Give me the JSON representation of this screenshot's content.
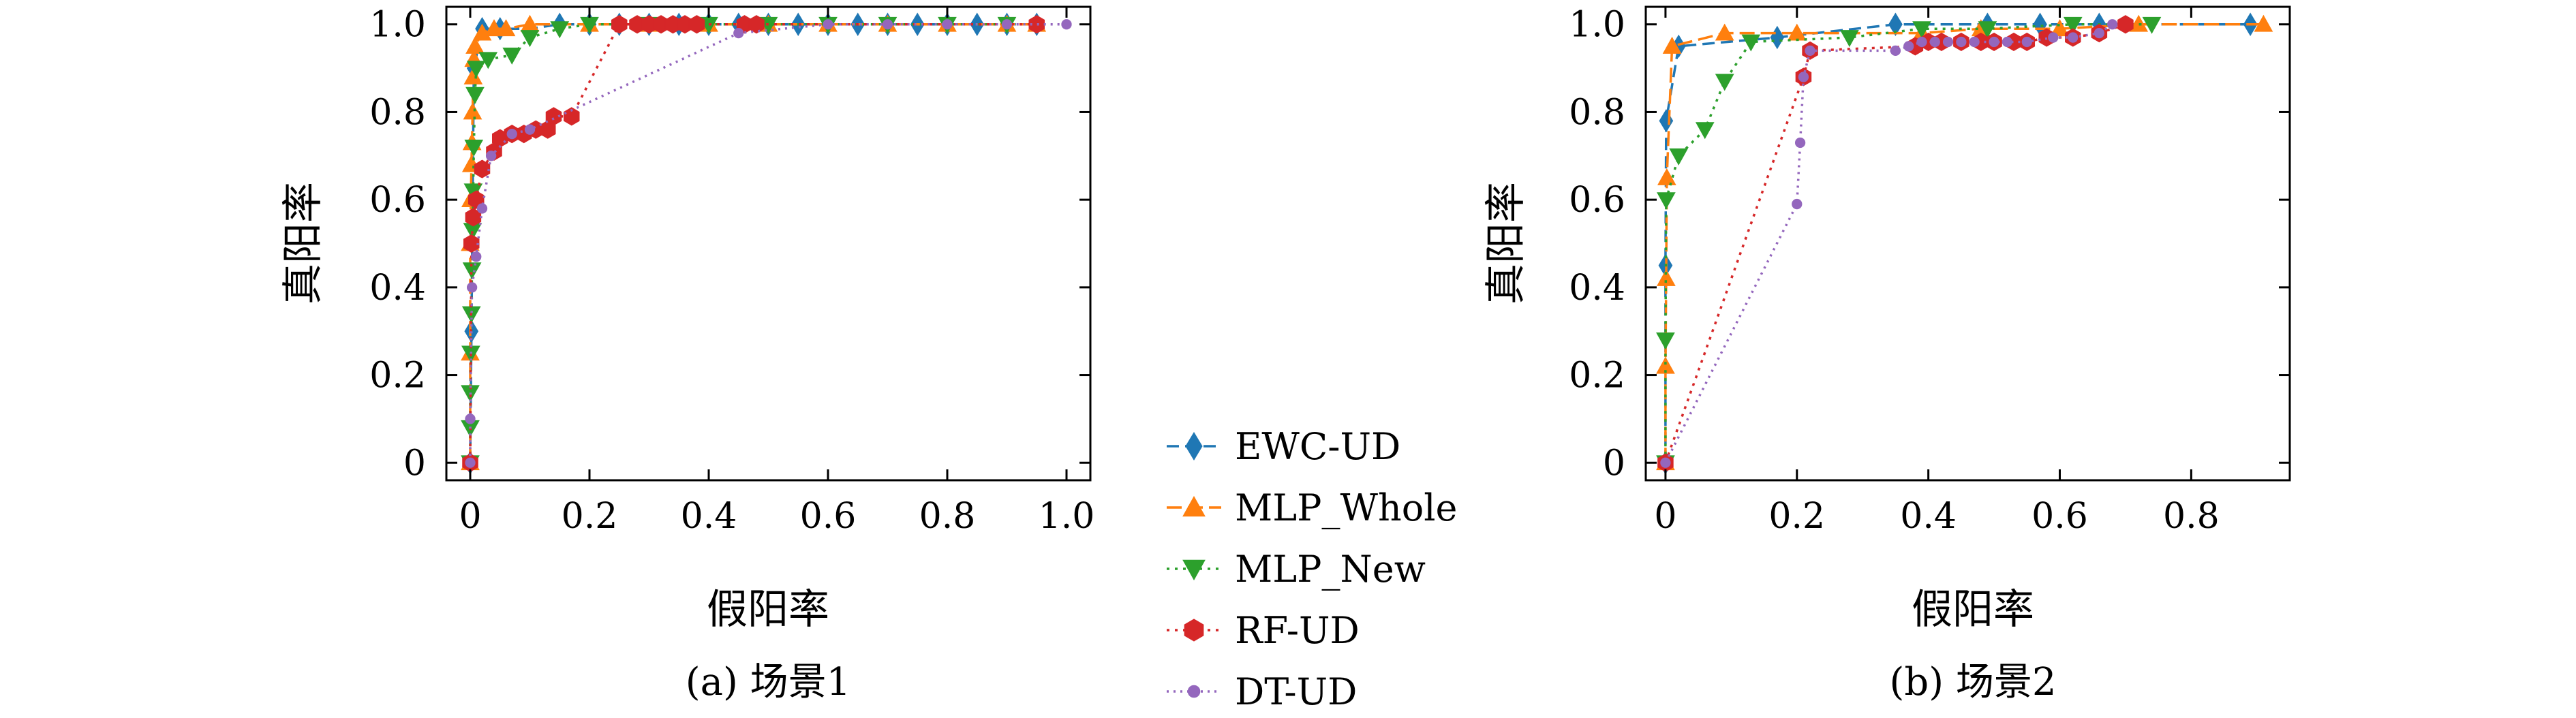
{
  "chart_data": [
    {
      "type": "line",
      "caption": "(a) 场景1",
      "xlabel": "假阳率",
      "ylabel": "真阳率",
      "xlim": [
        -0.04,
        1.04
      ],
      "ylim": [
        -0.04,
        1.04
      ],
      "xticks": [
        {
          "value": 0,
          "label": "0"
        },
        {
          "value": 0.2,
          "label": "0.2"
        },
        {
          "value": 0.4,
          "label": "0.4"
        },
        {
          "value": 0.6,
          "label": "0.6"
        },
        {
          "value": 0.8,
          "label": "0.8"
        },
        {
          "value": 1.0,
          "label": "1.0"
        }
      ],
      "yticks": [
        {
          "value": 0,
          "label": "0"
        },
        {
          "value": 0.2,
          "label": "0.2"
        },
        {
          "value": 0.4,
          "label": "0.4"
        },
        {
          "value": 0.6,
          "label": "0.6"
        },
        {
          "value": 0.8,
          "label": "0.8"
        },
        {
          "value": 1.0,
          "label": "1.0"
        }
      ],
      "grid": false,
      "series": [
        {
          "name": "EWC-UD",
          "color": "#1f77b4",
          "marker": "diamond",
          "dash": "18,9",
          "points": [
            [
              0,
              0
            ],
            [
              0.002,
              0.3
            ],
            [
              0.004,
              0.6
            ],
            [
              0.006,
              0.9
            ],
            [
              0.02,
              0.99
            ],
            [
              0.05,
              0.99
            ],
            [
              0.1,
              0.99
            ],
            [
              0.15,
              1.0
            ],
            [
              0.2,
              1.0
            ],
            [
              0.25,
              1.0
            ],
            [
              0.3,
              1.0
            ],
            [
              0.35,
              1.0
            ],
            [
              0.4,
              1.0
            ],
            [
              0.45,
              1.0
            ],
            [
              0.5,
              1.0
            ],
            [
              0.55,
              1.0
            ],
            [
              0.6,
              1.0
            ],
            [
              0.65,
              1.0
            ],
            [
              0.7,
              1.0
            ],
            [
              0.75,
              1.0
            ],
            [
              0.8,
              1.0
            ],
            [
              0.85,
              1.0
            ],
            [
              0.9,
              1.0
            ],
            [
              0.95,
              1.0
            ]
          ]
        },
        {
          "name": "MLP_Whole",
          "color": "#ff7f0e",
          "marker": "triangle-up",
          "dash": "22,9",
          "points": [
            [
              0,
              0
            ],
            [
              0,
              0.25
            ],
            [
              0,
              0.5
            ],
            [
              0.001,
              0.6
            ],
            [
              0.002,
              0.68
            ],
            [
              0.003,
              0.73
            ],
            [
              0.004,
              0.8
            ],
            [
              0.005,
              0.88
            ],
            [
              0.006,
              0.92
            ],
            [
              0.008,
              0.95
            ],
            [
              0.02,
              0.98
            ],
            [
              0.04,
              0.99
            ],
            [
              0.06,
              0.99
            ],
            [
              0.1,
              1.0
            ],
            [
              0.2,
              1.0
            ],
            [
              0.3,
              1.0
            ],
            [
              0.4,
              1.0
            ],
            [
              0.5,
              1.0
            ],
            [
              0.6,
              1.0
            ],
            [
              0.7,
              1.0
            ],
            [
              0.8,
              1.0
            ],
            [
              0.9,
              1.0
            ],
            [
              0.95,
              1.0
            ]
          ]
        },
        {
          "name": "MLP_New",
          "color": "#2ca02c",
          "marker": "triangle-down",
          "dash": "4,8",
          "points": [
            [
              0,
              0
            ],
            [
              0,
              0.08
            ],
            [
              0,
              0.16
            ],
            [
              0.001,
              0.25
            ],
            [
              0.002,
              0.34
            ],
            [
              0.003,
              0.44
            ],
            [
              0.004,
              0.53
            ],
            [
              0.005,
              0.62
            ],
            [
              0.006,
              0.72
            ],
            [
              0.008,
              0.84
            ],
            [
              0.01,
              0.9
            ],
            [
              0.03,
              0.92
            ],
            [
              0.07,
              0.93
            ],
            [
              0.1,
              0.97
            ],
            [
              0.15,
              0.99
            ],
            [
              0.2,
              1.0
            ],
            [
              0.3,
              1.0
            ],
            [
              0.4,
              1.0
            ],
            [
              0.5,
              1.0
            ],
            [
              0.6,
              1.0
            ],
            [
              0.7,
              1.0
            ],
            [
              0.8,
              1.0
            ],
            [
              0.9,
              1.0
            ]
          ]
        },
        {
          "name": "RF-UD",
          "color": "#d62728",
          "marker": "hexagon",
          "dash": "4,8",
          "points": [
            [
              0,
              0
            ],
            [
              0.002,
              0.5
            ],
            [
              0.005,
              0.56
            ],
            [
              0.01,
              0.6
            ],
            [
              0.02,
              0.67
            ],
            [
              0.04,
              0.71
            ],
            [
              0.05,
              0.74
            ],
            [
              0.07,
              0.75
            ],
            [
              0.09,
              0.75
            ],
            [
              0.11,
              0.76
            ],
            [
              0.13,
              0.76
            ],
            [
              0.14,
              0.79
            ],
            [
              0.17,
              0.79
            ],
            [
              0.25,
              1.0
            ],
            [
              0.28,
              1.0
            ],
            [
              0.3,
              1.0
            ],
            [
              0.32,
              1.0
            ],
            [
              0.34,
              1.0
            ],
            [
              0.36,
              1.0
            ],
            [
              0.38,
              1.0
            ],
            [
              0.46,
              1.0
            ],
            [
              0.48,
              1.0
            ],
            [
              0.95,
              1.0
            ]
          ]
        },
        {
          "name": "DT-UD",
          "color": "#9467bd",
          "marker": "circle",
          "dash": "3,7",
          "points": [
            [
              0,
              0
            ],
            [
              0,
              0.1
            ],
            [
              0.003,
              0.4
            ],
            [
              0.01,
              0.47
            ],
            [
              0.02,
              0.58
            ],
            [
              0.035,
              0.7
            ],
            [
              0.07,
              0.75
            ],
            [
              0.1,
              0.76
            ],
            [
              0.45,
              0.98
            ],
            [
              0.6,
              1.0
            ],
            [
              0.7,
              1.0
            ],
            [
              0.8,
              1.0
            ],
            [
              0.9,
              1.0
            ],
            [
              1.0,
              1.0
            ]
          ]
        }
      ]
    },
    {
      "type": "line",
      "caption": "(b) 场景2",
      "xlabel": "假阳率",
      "ylabel": "真阳率",
      "xlim": [
        -0.03,
        0.95
      ],
      "ylim": [
        -0.04,
        1.04
      ],
      "xticks": [
        {
          "value": 0,
          "label": "0"
        },
        {
          "value": 0.2,
          "label": "0.2"
        },
        {
          "value": 0.4,
          "label": "0.4"
        },
        {
          "value": 0.6,
          "label": "0.6"
        },
        {
          "value": 0.8,
          "label": "0.8"
        }
      ],
      "yticks": [
        {
          "value": 0,
          "label": "0"
        },
        {
          "value": 0.2,
          "label": "0.2"
        },
        {
          "value": 0.4,
          "label": "0.4"
        },
        {
          "value": 0.6,
          "label": "0.6"
        },
        {
          "value": 0.8,
          "label": "0.8"
        },
        {
          "value": 1.0,
          "label": "1.0"
        }
      ],
      "grid": false,
      "series": [
        {
          "name": "EWC-UD",
          "color": "#1f77b4",
          "marker": "diamond",
          "dash": "18,9",
          "points": [
            [
              0,
              0
            ],
            [
              0,
              0.45
            ],
            [
              0.001,
              0.78
            ],
            [
              0.02,
              0.95
            ],
            [
              0.17,
              0.97
            ],
            [
              0.35,
              1.0
            ],
            [
              0.49,
              1.0
            ],
            [
              0.57,
              1.0
            ],
            [
              0.66,
              1.0
            ],
            [
              0.89,
              1.0
            ]
          ]
        },
        {
          "name": "MLP_Whole",
          "color": "#ff7f0e",
          "marker": "triangle-up",
          "dash": "22,9",
          "points": [
            [
              0,
              0
            ],
            [
              0,
              0.22
            ],
            [
              0.001,
              0.42
            ],
            [
              0.002,
              0.65
            ],
            [
              0.01,
              0.95
            ],
            [
              0.09,
              0.98
            ],
            [
              0.2,
              0.98
            ],
            [
              0.39,
              0.98
            ],
            [
              0.48,
              0.99
            ],
            [
              0.6,
              0.99
            ],
            [
              0.72,
              1.0
            ],
            [
              0.91,
              1.0
            ]
          ]
        },
        {
          "name": "MLP_New",
          "color": "#2ca02c",
          "marker": "triangle-down",
          "dash": "4,8",
          "points": [
            [
              0,
              0
            ],
            [
              0,
              0.28
            ],
            [
              0.001,
              0.6
            ],
            [
              0.02,
              0.7
            ],
            [
              0.06,
              0.76
            ],
            [
              0.09,
              0.87
            ],
            [
              0.13,
              0.96
            ],
            [
              0.28,
              0.97
            ],
            [
              0.39,
              0.99
            ],
            [
              0.49,
              0.99
            ],
            [
              0.62,
              1.0
            ],
            [
              0.74,
              1.0
            ]
          ]
        },
        {
          "name": "RF-UD",
          "color": "#d62728",
          "marker": "hexagon",
          "dash": "4,8",
          "points": [
            [
              0,
              0
            ],
            [
              0.21,
              0.88
            ],
            [
              0.22,
              0.94
            ],
            [
              0.38,
              0.95
            ],
            [
              0.4,
              0.96
            ],
            [
              0.42,
              0.96
            ],
            [
              0.45,
              0.96
            ],
            [
              0.48,
              0.96
            ],
            [
              0.5,
              0.96
            ],
            [
              0.53,
              0.96
            ],
            [
              0.55,
              0.96
            ],
            [
              0.58,
              0.97
            ],
            [
              0.62,
              0.97
            ],
            [
              0.66,
              0.98
            ],
            [
              0.7,
              1.0
            ]
          ]
        },
        {
          "name": "DT-UD",
          "color": "#9467bd",
          "marker": "circle",
          "dash": "3,7",
          "points": [
            [
              0,
              0
            ],
            [
              0.2,
              0.59
            ],
            [
              0.205,
              0.73
            ],
            [
              0.21,
              0.88
            ],
            [
              0.22,
              0.94
            ],
            [
              0.35,
              0.94
            ],
            [
              0.37,
              0.95
            ],
            [
              0.39,
              0.96
            ],
            [
              0.41,
              0.96
            ],
            [
              0.43,
              0.96
            ],
            [
              0.45,
              0.96
            ],
            [
              0.47,
              0.96
            ],
            [
              0.5,
              0.96
            ],
            [
              0.52,
              0.96
            ],
            [
              0.55,
              0.96
            ],
            [
              0.59,
              0.97
            ],
            [
              0.62,
              0.97
            ],
            [
              0.66,
              0.98
            ],
            [
              0.68,
              1.0
            ]
          ]
        }
      ]
    }
  ],
  "legend": {
    "placement": "between panels",
    "entries": [
      {
        "label": "EWC-UD",
        "color": "#1f77b4",
        "marker": "diamond",
        "dash": "18,9"
      },
      {
        "label": "MLP_Whole",
        "color": "#ff7f0e",
        "marker": "triangle-up",
        "dash": "22,9"
      },
      {
        "label": "MLP_New",
        "color": "#2ca02c",
        "marker": "triangle-down",
        "dash": "4,8"
      },
      {
        "label": "RF-UD",
        "color": "#d62728",
        "marker": "hexagon",
        "dash": "4,8"
      },
      {
        "label": "DT-UD",
        "color": "#9467bd",
        "marker": "circle",
        "dash": "3,7"
      }
    ]
  }
}
